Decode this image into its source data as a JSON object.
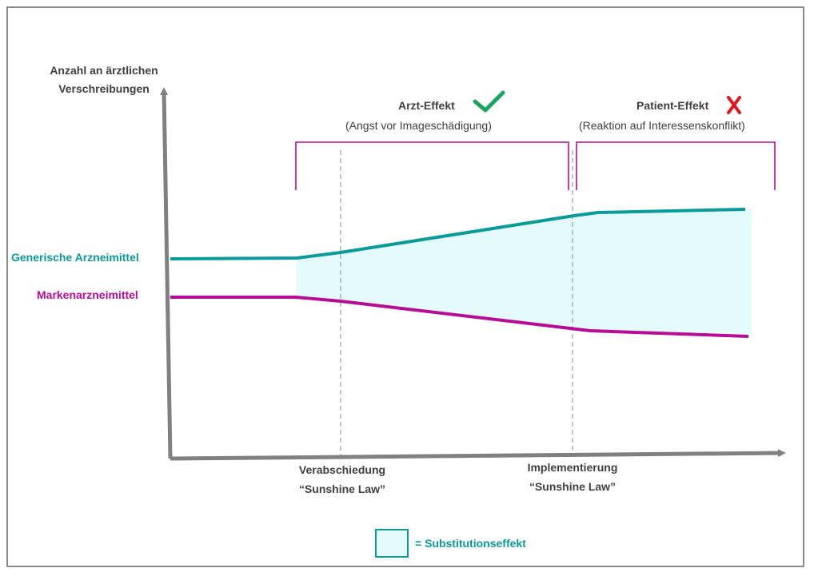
{
  "y_axis_label": [
    "Anzahl an ärztlichen",
    "Verschreibungen"
  ],
  "series": [
    {
      "name": "Generische Arzneimittel",
      "color": "#0a9a98"
    },
    {
      "name": "Markenarzneimittel",
      "color": "#b70d96"
    }
  ],
  "effects": {
    "arzt": {
      "title": "Arzt-Effekt",
      "subtitle": "(Angst vor Imageschädigung)",
      "icon": "checkmark-icon",
      "icon_color": "#19a463"
    },
    "patient": {
      "title": "Patient-Effekt",
      "subtitle": "(Reaktion auf Interessenskonflikt)",
      "icon": "cross-icon",
      "icon_color": "#e0161c"
    }
  },
  "events": [
    {
      "line1": "Verabschiedung",
      "line2": "“Sunshine Law”"
    },
    {
      "line1": "Implementierung",
      "line2": "“Sunshine Law”"
    }
  ],
  "legend": {
    "label": "= Substitutionseffekt",
    "fill": "#e3fbfc",
    "stroke": "#0a9a98"
  },
  "colors": {
    "axis": "#808080",
    "bracket": "#b70d96",
    "dashed": "#a6a6a6",
    "area": "#e3fbfc"
  }
}
